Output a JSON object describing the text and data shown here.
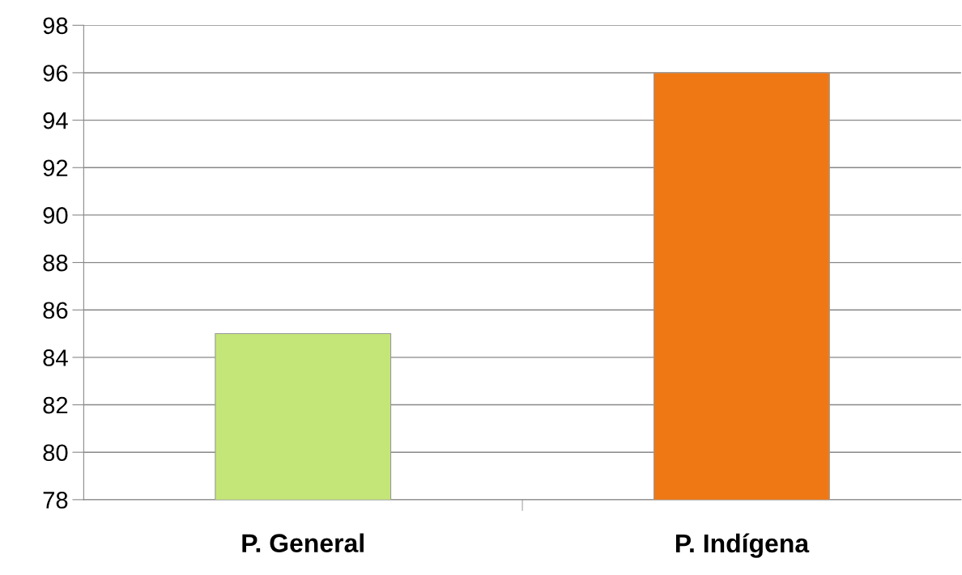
{
  "chart_data": {
    "type": "bar",
    "categories": [
      "P. General",
      "P. Indígena"
    ],
    "values": [
      85,
      96
    ],
    "colors": [
      "#c4e678",
      "#f07814"
    ],
    "ylim": [
      78,
      98
    ],
    "yticks": [
      78,
      80,
      82,
      84,
      86,
      88,
      90,
      92,
      94,
      96,
      98
    ],
    "grid": "y"
  }
}
